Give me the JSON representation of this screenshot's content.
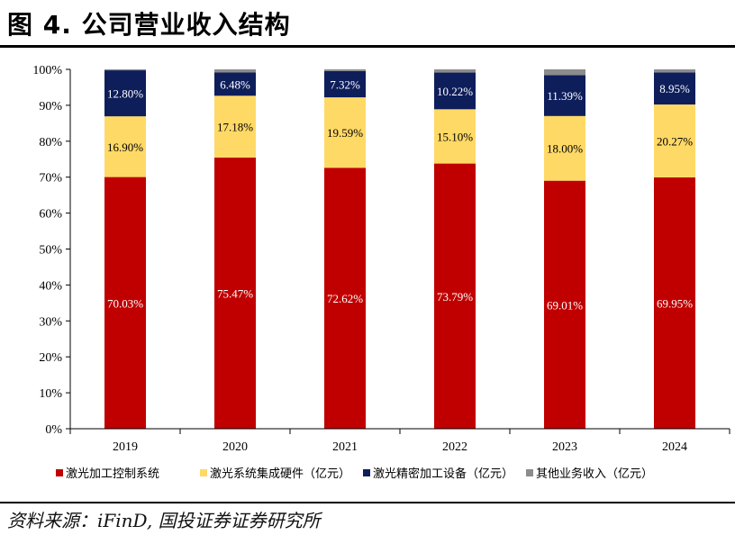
{
  "title": "图 4. 公司营业收入结构",
  "source": "资料来源：iFinD, 国投证券证券研究所",
  "colors": {
    "series": [
      "#C00000",
      "#FFD966",
      "#0E1E5B",
      "#8C8C8C"
    ],
    "axis": "#000000",
    "label_light": "#FFFFFF",
    "label_dark": "#000000"
  },
  "chart_data": {
    "type": "bar",
    "stacked": true,
    "percent": true,
    "categories": [
      "2019",
      "2020",
      "2021",
      "2022",
      "2023",
      "2024"
    ],
    "series": [
      {
        "name": "激光加工控制系统",
        "values": [
          70.03,
          75.47,
          72.62,
          73.79,
          69.01,
          69.95
        ],
        "labels": [
          "70.03%",
          "75.47%",
          "72.62%",
          "73.79%",
          "69.01%",
          "69.95%"
        ]
      },
      {
        "name": "激光系统集成硬件（亿元）",
        "values": [
          16.9,
          17.18,
          19.59,
          15.1,
          18.0,
          20.27
        ],
        "labels": [
          "16.90%",
          "17.18%",
          "19.59%",
          "15.10%",
          "18.00%",
          "20.27%"
        ]
      },
      {
        "name": "激光精密加工设备（亿元）",
        "values": [
          12.8,
          6.48,
          7.32,
          10.22,
          11.39,
          8.95
        ],
        "labels": [
          "12.80%",
          "6.48%",
          "7.32%",
          "10.22%",
          "11.39%",
          "8.95%"
        ]
      },
      {
        "name": "其他业务收入（亿元）",
        "values": [
          0.27,
          0.87,
          0.47,
          0.89,
          1.6,
          0.83
        ],
        "labels": [
          "",
          "",
          "",
          "",
          "",
          ""
        ]
      }
    ],
    "y_ticks": [
      "0%",
      "10%",
      "20%",
      "30%",
      "40%",
      "50%",
      "60%",
      "70%",
      "80%",
      "90%",
      "100%"
    ],
    "ylim": [
      0,
      100
    ],
    "legend_position": "bottom"
  }
}
